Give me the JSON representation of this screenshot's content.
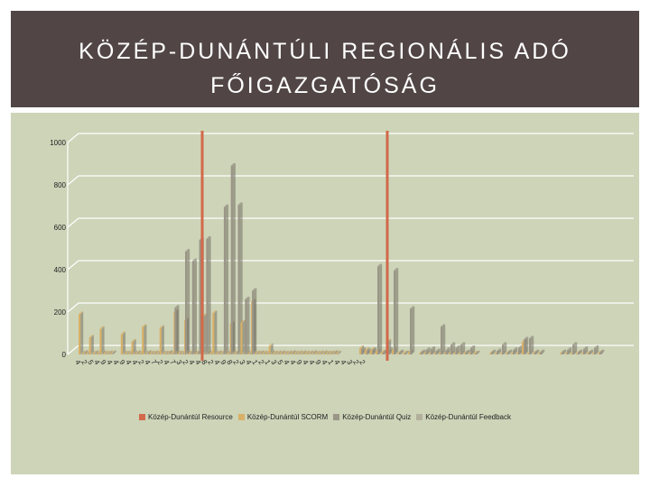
{
  "title": {
    "line1": "KÖZÉP-DUNÁNTÚLI REGIONÁLIS ADÓ",
    "line2": "FŐIGAZGATÓSÁG"
  },
  "colors": {
    "resource": "#d2694a",
    "scorm": "#d8b067",
    "quiz": "#9b9687",
    "feedback": "#b2b09d",
    "marker": "#d2694a"
  },
  "chart_data": {
    "type": "bar",
    "ylim": [
      0,
      1000
    ],
    "yticks": [
      "0",
      "200",
      "400",
      "600",
      "800",
      "1000"
    ],
    "xlabels": [
      "4",
      "2",
      "5",
      "4",
      "9",
      "4",
      "4",
      "9",
      "4",
      "4",
      "2",
      "4",
      "7",
      "2",
      "4",
      "7",
      "3",
      "2",
      "4",
      "4",
      "8",
      "2",
      "4",
      "9",
      "8",
      "2",
      "3",
      "4",
      "1",
      "2",
      "1",
      "3",
      "5",
      "4",
      "4",
      "9",
      "4",
      "4",
      "9",
      "4",
      "1",
      "4",
      "4",
      "3",
      "2",
      "2"
    ],
    "series": [
      {
        "name": "Közép-Dunántúl Resource",
        "values": [
          0,
          0,
          0,
          0,
          0,
          0,
          0,
          0,
          0,
          0,
          0,
          0,
          0,
          0,
          0,
          0,
          0,
          0,
          0,
          0,
          0,
          0,
          0,
          0,
          0,
          0,
          0,
          0,
          0,
          0,
          0,
          0,
          0,
          0,
          0,
          0,
          0,
          0,
          0,
          0,
          0,
          0,
          0,
          0,
          0,
          0,
          0,
          0,
          0,
          0,
          0,
          0,
          0,
          0,
          0,
          0,
          0,
          0,
          0,
          0,
          0,
          0,
          0,
          0,
          0,
          0,
          0,
          0,
          0,
          0,
          0,
          0,
          0,
          0
        ]
      },
      {
        "name": "Közép-Dunántúl SCORM",
        "values": [
          190,
          5,
          5,
          80,
          5,
          5,
          120,
          5,
          5,
          5,
          0,
          0,
          95,
          5,
          5,
          60,
          5,
          5,
          130,
          5,
          5,
          5,
          5,
          125,
          5,
          5,
          5,
          200,
          5,
          5,
          160,
          5,
          5,
          5,
          5,
          180,
          5,
          5,
          195,
          5,
          5,
          5,
          5,
          145,
          5,
          5,
          150,
          5,
          5,
          250,
          5,
          5,
          5,
          5,
          40,
          5,
          5,
          5,
          5,
          5,
          5,
          5,
          5,
          5,
          5,
          5,
          5,
          5,
          5,
          5,
          5,
          5,
          5,
          5
        ]
      },
      {
        "name": "Közép-Dunántúl Quiz",
        "values": [
          0,
          0,
          0,
          0,
          0,
          0,
          0,
          0,
          0,
          0,
          0,
          0,
          0,
          0,
          0,
          0,
          0,
          0,
          0,
          0,
          0,
          0,
          0,
          0,
          0,
          0,
          0,
          220,
          0,
          0,
          485,
          0,
          440,
          0,
          540,
          0,
          545,
          0,
          0,
          0,
          0,
          695,
          0,
          890,
          0,
          705,
          0,
          260,
          0,
          300,
          0,
          0,
          0,
          0,
          0,
          0,
          0,
          0,
          0,
          0,
          0,
          0,
          0,
          0,
          0,
          0,
          0,
          0,
          0,
          0,
          0,
          0,
          0,
          0
        ]
      },
      {
        "name": "Közép-Dunántúl Feedback",
        "values": [
          5,
          8,
          6,
          5,
          7,
          6,
          8,
          5,
          6,
          7,
          0,
          0,
          6,
          5,
          8,
          6,
          7,
          5,
          6,
          8,
          5,
          6,
          7,
          6,
          5,
          8,
          6,
          7,
          5,
          6,
          8,
          5,
          6,
          7,
          5,
          6,
          8,
          5,
          6,
          7,
          5,
          6,
          8,
          5,
          6,
          7,
          5,
          6,
          8,
          5,
          6,
          7,
          5,
          6,
          8,
          5,
          6,
          7,
          5,
          6,
          8,
          5,
          6,
          7,
          5,
          6,
          8,
          5,
          6,
          7,
          5,
          6,
          8,
          5
        ]
      }
    ],
    "group2": {
      "quiz": [
        20,
        15,
        20,
        415,
        10,
        20,
        395,
        10,
        5,
        215
      ],
      "scorm": [
        30,
        20,
        20,
        15,
        10,
        60,
        20,
        5,
        5,
        10
      ]
    },
    "group3": {
      "quiz": [
        10,
        20,
        25,
        15,
        130,
        20,
        45,
        30,
        45,
        10,
        30,
        5
      ],
      "scorm": [
        5,
        5,
        5,
        5,
        5,
        5,
        5,
        5,
        5,
        5,
        5,
        5
      ]
    },
    "group4": {
      "quiz": [
        10,
        15,
        45,
        10,
        20,
        30,
        70,
        75,
        10,
        10
      ],
      "scorm": [
        5,
        5,
        5,
        5,
        5,
        5,
        60,
        5,
        5,
        5
      ]
    },
    "group5": {
      "quiz": [
        10,
        20,
        45,
        10,
        25,
        10,
        30,
        10
      ],
      "scorm": [
        5,
        5,
        5,
        5,
        5,
        5,
        5,
        5
      ]
    },
    "xlabels_visible": [
      "4",
      "2",
      "5",
      "4",
      "9",
      "4",
      "4",
      "9",
      "4",
      "4",
      "2",
      "4",
      "7",
      "2",
      "4",
      "7",
      "3",
      "2",
      "4",
      "4",
      "8",
      "2",
      "4",
      "9",
      "8",
      "2",
      "3",
      "4",
      "1",
      "2",
      "1",
      "3",
      "5",
      "4",
      "4",
      "9",
      "4",
      "4",
      "9",
      "4",
      "1",
      "4",
      "4",
      "3",
      "2",
      "2"
    ]
  },
  "legend": {
    "resource": "Közép-Dunántúl Resource",
    "scorm": "Közép-Dunántúl SCORM",
    "quiz": "Közép-Dunántúl Quiz",
    "feedback": "Közép-Dunántúl Feedback"
  }
}
